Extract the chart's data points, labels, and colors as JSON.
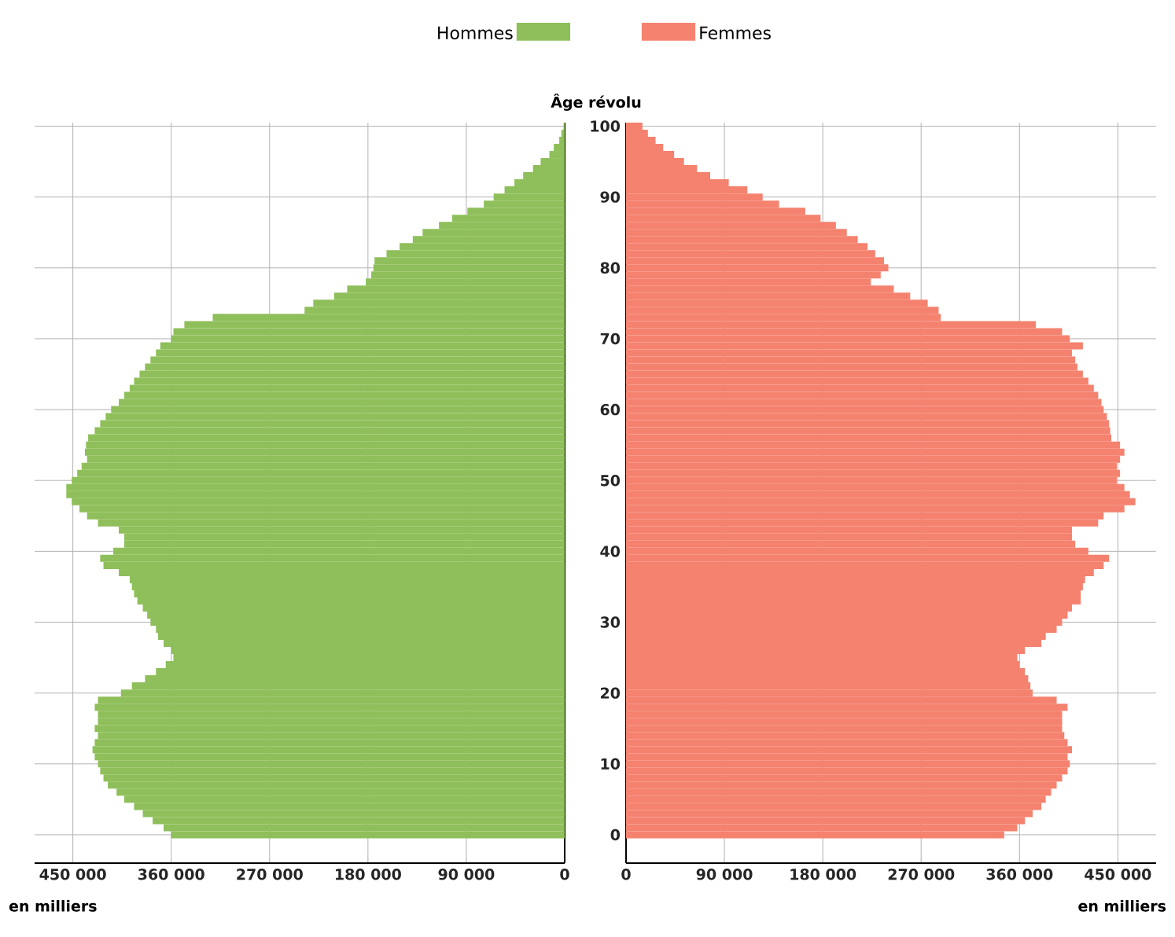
{
  "chart_data": [
    {
      "type": "bar",
      "orientation": "horizontal",
      "xlabel": "en milliers",
      "tick_labels": "x",
      "grid": true,
      "legend": "top",
      "categories": [
        "100",
        null,
        null,
        null,
        null,
        null,
        null,
        null,
        null,
        null,
        "90",
        null,
        null,
        null,
        null,
        null,
        null,
        null,
        null,
        null,
        "80",
        null,
        null,
        null,
        null,
        null,
        null,
        null,
        null,
        null,
        "70",
        null,
        null,
        null,
        null,
        null,
        null,
        null,
        null,
        null,
        "60",
        null,
        null,
        null,
        null,
        null,
        null,
        null,
        null,
        null,
        "50",
        null,
        null,
        null,
        null,
        null,
        null,
        null,
        null,
        null,
        "40",
        null,
        null,
        null,
        null,
        null,
        null,
        null,
        null,
        null,
        "30",
        null,
        null,
        null,
        null,
        null,
        null,
        null,
        null,
        null,
        "20",
        null,
        null,
        null,
        null,
        null,
        null,
        null,
        null,
        null,
        "10",
        null,
        null,
        null,
        null,
        null,
        null,
        null,
        null,
        null,
        "0"
      ],
      "xlim": [
        485000,
        0
      ],
      "xticks": [
        0,
        {
          "value": 90000,
          "label": "90 000"
        },
        {
          "value": 180000,
          "label": "180 000"
        },
        {
          "value": 270000,
          "label": "270 000"
        },
        {
          "value": 360000,
          "label": "360 000"
        },
        {
          "value": 450000,
          "label": "450 000"
        }
      ],
      "series": [
        {
          "name": "Hommes",
          "color": "#8fbf5a",
          "values": [
            1000,
            3000,
            5000,
            10000,
            14000,
            22000,
            29000,
            38000,
            46000,
            55000,
            65000,
            74000,
            89000,
            103000,
            115000,
            130000,
            139000,
            151000,
            163000,
            174000,
            175000,
            177000,
            182000,
            199000,
            211000,
            230000,
            238000,
            322000,
            348000,
            358000,
            360000,
            370000,
            374000,
            379000,
            384000,
            389000,
            394000,
            398000,
            403000,
            408000,
            415000,
            420000,
            425000,
            430000,
            436000,
            438000,
            439000,
            437000,
            442000,
            446000,
            451000,
            456000,
            456000,
            451000,
            444000,
            437000,
            427000,
            408000,
            403000,
            403000,
            413000,
            425000,
            422000,
            408000,
            398000,
            396000,
            394000,
            391000,
            386000,
            382000,
            379000,
            374000,
            372000,
            367000,
            360000,
            358000,
            365000,
            374000,
            384000,
            396000,
            406000,
            427000,
            430000,
            427000,
            427000,
            430000,
            427000,
            430000,
            432000,
            430000,
            427000,
            425000,
            422000,
            418000,
            410000,
            403000,
            394000,
            386000,
            377000,
            367000,
            360000
          ]
        }
      ]
    },
    {
      "type": "bar",
      "orientation": "horizontal",
      "xlabel": "en milliers",
      "ylabel": "Âge révolu",
      "grid": true,
      "legend": "top",
      "categories": [
        "100",
        null,
        null,
        null,
        null,
        null,
        null,
        null,
        null,
        null,
        "90",
        null,
        null,
        null,
        null,
        null,
        null,
        null,
        null,
        null,
        "80",
        null,
        null,
        null,
        null,
        null,
        null,
        null,
        null,
        null,
        "70",
        null,
        null,
        null,
        null,
        null,
        null,
        null,
        null,
        null,
        "60",
        null,
        null,
        null,
        null,
        null,
        null,
        null,
        null,
        null,
        "50",
        null,
        null,
        null,
        null,
        null,
        null,
        null,
        null,
        null,
        "40",
        null,
        null,
        null,
        null,
        null,
        null,
        null,
        null,
        null,
        "30",
        null,
        null,
        null,
        null,
        null,
        null,
        null,
        null,
        null,
        "20",
        null,
        null,
        null,
        null,
        null,
        null,
        null,
        null,
        null,
        "10",
        null,
        null,
        null,
        null,
        null,
        null,
        null,
        null,
        null,
        "0"
      ],
      "xlim": [
        0,
        485000
      ],
      "xticks": [
        0,
        {
          "value": 90000,
          "label": "90 000"
        },
        {
          "value": 180000,
          "label": "180 000"
        },
        {
          "value": 270000,
          "label": "270 000"
        },
        {
          "value": 360000,
          "label": "360 000"
        },
        {
          "value": 450000,
          "label": "450 000"
        }
      ],
      "series": [
        {
          "name": "Femmes",
          "color": "#f4826f",
          "values": [
            15000,
            20000,
            27000,
            34000,
            44000,
            53000,
            65000,
            77000,
            94000,
            111000,
            125000,
            140000,
            164000,
            178000,
            192000,
            202000,
            212000,
            221000,
            228000,
            236000,
            240000,
            233000,
            224000,
            245000,
            260000,
            276000,
            286000,
            288000,
            375000,
            399000,
            406000,
            418000,
            408000,
            411000,
            413000,
            418000,
            423000,
            428000,
            432000,
            435000,
            437000,
            440000,
            442000,
            443000,
            444000,
            452000,
            456000,
            452000,
            449000,
            452000,
            449000,
            456000,
            461000,
            466000,
            456000,
            437000,
            432000,
            408000,
            408000,
            411000,
            423000,
            442000,
            437000,
            428000,
            420000,
            418000,
            416000,
            416000,
            408000,
            404000,
            399000,
            394000,
            384000,
            380000,
            365000,
            358000,
            360000,
            365000,
            368000,
            370000,
            372000,
            394000,
            404000,
            399000,
            399000,
            399000,
            401000,
            404000,
            408000,
            404000,
            406000,
            404000,
            399000,
            394000,
            389000,
            384000,
            380000,
            372000,
            365000,
            358000,
            346000
          ]
        }
      ]
    }
  ]
}
